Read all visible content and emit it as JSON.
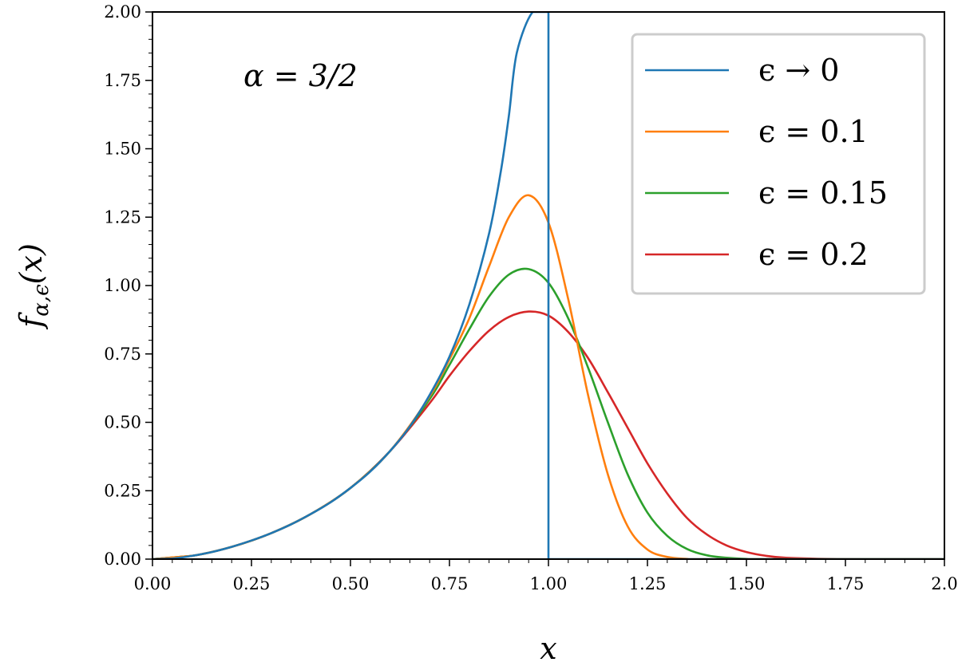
{
  "chart_data": {
    "type": "line",
    "title": "",
    "xlabel": "x",
    "ylabel": "f_{α,ϵ}(x)",
    "xlim": [
      0,
      2
    ],
    "ylim": [
      0,
      2
    ],
    "x_ticks": [
      "0.00",
      "0.25",
      "0.50",
      "0.75",
      "1.00",
      "1.25",
      "1.50",
      "1.75",
      "2.0"
    ],
    "y_ticks": [
      "0.00",
      "0.25",
      "0.50",
      "0.75",
      "1.00",
      "1.25",
      "1.50",
      "1.75",
      "2.00"
    ],
    "grid": false,
    "legend_position": "top-right",
    "annotation": "α = 3/2",
    "series": [
      {
        "name": "ϵ → 0",
        "color": "#1f77b4",
        "points": [
          [
            0,
            0
          ],
          [
            0.05,
            0.002
          ],
          [
            0.1,
            0.012
          ],
          [
            0.15,
            0.026
          ],
          [
            0.2,
            0.045
          ],
          [
            0.25,
            0.068
          ],
          [
            0.3,
            0.095
          ],
          [
            0.35,
            0.127
          ],
          [
            0.4,
            0.165
          ],
          [
            0.45,
            0.208
          ],
          [
            0.5,
            0.26
          ],
          [
            0.55,
            0.32
          ],
          [
            0.6,
            0.395
          ],
          [
            0.65,
            0.485
          ],
          [
            0.7,
            0.6
          ],
          [
            0.75,
            0.74
          ],
          [
            0.8,
            0.93
          ],
          [
            0.85,
            1.19
          ],
          [
            0.88,
            1.42
          ],
          [
            0.9,
            1.62
          ],
          [
            0.92,
            1.85
          ],
          [
            0.96,
            2.0
          ],
          [
            1.0,
            2.0
          ],
          [
            1.0,
            0
          ],
          [
            2.0,
            0
          ]
        ]
      },
      {
        "name": "ϵ = 0.1",
        "color": "#ff7f0e",
        "points": [
          [
            0,
            0
          ],
          [
            0.1,
            0.012
          ],
          [
            0.2,
            0.045
          ],
          [
            0.3,
            0.095
          ],
          [
            0.4,
            0.165
          ],
          [
            0.5,
            0.26
          ],
          [
            0.6,
            0.395
          ],
          [
            0.7,
            0.595
          ],
          [
            0.75,
            0.73
          ],
          [
            0.8,
            0.88
          ],
          [
            0.85,
            1.07
          ],
          [
            0.9,
            1.25
          ],
          [
            0.95,
            1.33
          ],
          [
            1.0,
            1.23
          ],
          [
            1.05,
            0.95
          ],
          [
            1.1,
            0.6
          ],
          [
            1.15,
            0.31
          ],
          [
            1.2,
            0.12
          ],
          [
            1.25,
            0.035
          ],
          [
            1.3,
            0.008
          ],
          [
            1.35,
            0.001
          ],
          [
            1.4,
            0
          ],
          [
            2.0,
            0
          ]
        ]
      },
      {
        "name": "ϵ = 0.15",
        "color": "#2ca02c",
        "points": [
          [
            0,
            0
          ],
          [
            0.1,
            0.012
          ],
          [
            0.2,
            0.045
          ],
          [
            0.3,
            0.095
          ],
          [
            0.4,
            0.165
          ],
          [
            0.5,
            0.26
          ],
          [
            0.6,
            0.395
          ],
          [
            0.7,
            0.585
          ],
          [
            0.75,
            0.71
          ],
          [
            0.8,
            0.84
          ],
          [
            0.85,
            0.96
          ],
          [
            0.9,
            1.04
          ],
          [
            0.95,
            1.06
          ],
          [
            1.0,
            1.01
          ],
          [
            1.05,
            0.88
          ],
          [
            1.1,
            0.7
          ],
          [
            1.15,
            0.5
          ],
          [
            1.2,
            0.31
          ],
          [
            1.25,
            0.17
          ],
          [
            1.3,
            0.085
          ],
          [
            1.35,
            0.037
          ],
          [
            1.4,
            0.014
          ],
          [
            1.45,
            0.005
          ],
          [
            1.5,
            0.001
          ],
          [
            1.55,
            0
          ],
          [
            2.0,
            0
          ]
        ]
      },
      {
        "name": "ϵ = 0.2",
        "color": "#d62728",
        "points": [
          [
            0,
            0
          ],
          [
            0.1,
            0.012
          ],
          [
            0.2,
            0.045
          ],
          [
            0.3,
            0.095
          ],
          [
            0.4,
            0.165
          ],
          [
            0.5,
            0.26
          ],
          [
            0.6,
            0.395
          ],
          [
            0.7,
            0.57
          ],
          [
            0.75,
            0.67
          ],
          [
            0.8,
            0.76
          ],
          [
            0.85,
            0.835
          ],
          [
            0.9,
            0.885
          ],
          [
            0.95,
            0.905
          ],
          [
            1.0,
            0.89
          ],
          [
            1.05,
            0.83
          ],
          [
            1.1,
            0.735
          ],
          [
            1.15,
            0.61
          ],
          [
            1.2,
            0.48
          ],
          [
            1.25,
            0.35
          ],
          [
            1.3,
            0.24
          ],
          [
            1.35,
            0.15
          ],
          [
            1.4,
            0.09
          ],
          [
            1.45,
            0.05
          ],
          [
            1.5,
            0.026
          ],
          [
            1.55,
            0.012
          ],
          [
            1.6,
            0.005
          ],
          [
            1.7,
            0.001
          ],
          [
            1.8,
            0
          ],
          [
            2.0,
            0
          ]
        ]
      }
    ]
  }
}
